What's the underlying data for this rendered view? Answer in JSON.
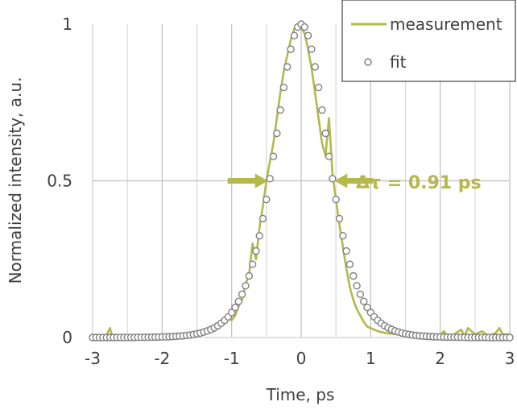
{
  "chart_data": {
    "type": "scatter",
    "xlabel": "Time, ps",
    "ylabel": "Normalized intensity, a.u.",
    "xlim": [
      -3,
      3
    ],
    "ylim": [
      0,
      1
    ],
    "x_ticks": [
      "-3",
      "-2",
      "-1",
      "0",
      "1",
      "2",
      "3"
    ],
    "y_ticks": [
      "0",
      "0.5",
      "1"
    ],
    "grid": "vertical gridlines every 0.5 ps",
    "legend_position": "top-right",
    "annotation": {
      "text": "Δτ = 0.91 ps",
      "fwhm_left": -0.455,
      "fwhm_right": 0.455,
      "level": 0.5,
      "color": "#b5b84a"
    },
    "series": [
      {
        "name": "measurement",
        "style": "line",
        "color": "#b5b84a",
        "x": [
          -3.0,
          -2.8,
          -2.75,
          -2.72,
          -2.68,
          -2.6,
          -2.4,
          -2.2,
          -2.0,
          -1.8,
          -1.6,
          -1.5,
          -1.4,
          -1.35,
          -1.3,
          -1.25,
          -1.2,
          -1.15,
          -1.1,
          -1.05,
          -1.0,
          -0.95,
          -0.9,
          -0.85,
          -0.8,
          -0.75,
          -0.7,
          -0.65,
          -0.6,
          -0.55,
          -0.5,
          -0.45,
          -0.4,
          -0.35,
          -0.3,
          -0.25,
          -0.2,
          -0.15,
          -0.1,
          -0.05,
          0.0,
          0.05,
          0.1,
          0.15,
          0.2,
          0.25,
          0.3,
          0.35,
          0.4,
          0.45,
          0.5,
          0.55,
          0.6,
          0.65,
          0.7,
          0.75,
          0.8,
          0.85,
          0.9,
          0.95,
          1.0,
          1.1,
          1.2,
          1.3,
          1.4,
          1.5,
          1.6,
          1.8,
          2.0,
          2.05,
          2.1,
          2.2,
          2.3,
          2.35,
          2.4,
          2.5,
          2.6,
          2.7,
          2.8,
          2.85,
          2.9,
          3.0
        ],
        "y": [
          0.005,
          0.008,
          0.03,
          0.005,
          0.006,
          0.006,
          0.005,
          0.006,
          0.006,
          0.008,
          0.01,
          0.012,
          0.015,
          0.018,
          0.025,
          0.02,
          0.035,
          0.04,
          0.045,
          0.06,
          0.055,
          0.07,
          0.1,
          0.12,
          0.17,
          0.2,
          0.3,
          0.25,
          0.35,
          0.42,
          0.5,
          0.56,
          0.62,
          0.7,
          0.78,
          0.85,
          0.9,
          0.95,
          0.985,
          1.0,
          0.99,
          0.97,
          0.92,
          0.86,
          0.78,
          0.7,
          0.62,
          0.58,
          0.7,
          0.52,
          0.44,
          0.36,
          0.29,
          0.22,
          0.16,
          0.12,
          0.09,
          0.07,
          0.05,
          0.035,
          0.03,
          0.02,
          0.015,
          0.012,
          0.01,
          0.008,
          0.007,
          0.006,
          0.005,
          0.02,
          0.005,
          0.01,
          0.025,
          0.005,
          0.03,
          0.01,
          0.02,
          0.005,
          0.015,
          0.03,
          0.01,
          0.01
        ]
      },
      {
        "name": "fit",
        "style": "markers",
        "marker": "open-circle",
        "color": "#808080",
        "function": "sech^2",
        "fwhm": 0.91,
        "center": 0.0,
        "x_step": 0.05
      }
    ]
  }
}
